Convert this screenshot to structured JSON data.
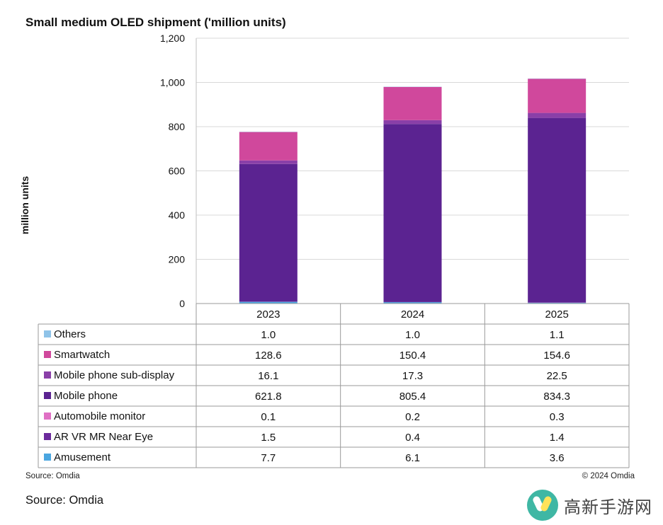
{
  "chart_data": {
    "type": "bar",
    "stacked": true,
    "title": "Small medium OLED shipment ('million units)",
    "ylabel": "million units",
    "xlabel": "",
    "categories": [
      "2023",
      "2024",
      "2025"
    ],
    "ylim": [
      0,
      1200
    ],
    "yticks": [
      "0",
      "200",
      "400",
      "600",
      "800",
      "1,000",
      "1,200"
    ],
    "ytick_values": [
      0,
      200,
      400,
      600,
      800,
      1000,
      1200
    ],
    "grid": "horizontal",
    "legend": "table-below",
    "series": [
      {
        "name": "Others",
        "color": "#8fc3e8",
        "values": [
          1.0,
          1.0,
          1.1
        ],
        "labels": [
          "1.0",
          "1.0",
          "1.1"
        ]
      },
      {
        "name": "Smartwatch",
        "color": "#d0489c",
        "values": [
          128.6,
          150.4,
          154.6
        ],
        "labels": [
          "128.6",
          "150.4",
          "154.6"
        ]
      },
      {
        "name": "Mobile phone sub-display",
        "color": "#8a3fa8",
        "values": [
          16.1,
          17.3,
          22.5
        ],
        "labels": [
          "16.1",
          "17.3",
          "22.5"
        ]
      },
      {
        "name": "Mobile phone",
        "color": "#5b2391",
        "values": [
          621.8,
          805.4,
          834.3
        ],
        "labels": [
          "621.8",
          "805.4",
          "834.3"
        ]
      },
      {
        "name": "Automobile monitor",
        "color": "#e070c4",
        "values": [
          0.1,
          0.2,
          0.3
        ],
        "labels": [
          "0.1",
          "0.2",
          "0.3"
        ]
      },
      {
        "name": "AR VR MR Near Eye",
        "color": "#6b2a9c",
        "values": [
          1.5,
          0.4,
          1.4
        ],
        "labels": [
          "1.5",
          "0.4",
          "1.4"
        ]
      },
      {
        "name": "Amusement",
        "color": "#4aa6e0",
        "values": [
          7.7,
          6.1,
          3.6
        ],
        "labels": [
          "7.7",
          "6.1",
          "3.6"
        ]
      }
    ],
    "source_inner": "Source: Omdia",
    "copyright": "© 2024 Omdia"
  },
  "footer": {
    "source": "Source: Omdia"
  },
  "watermark": {
    "text": "高新手游网"
  }
}
